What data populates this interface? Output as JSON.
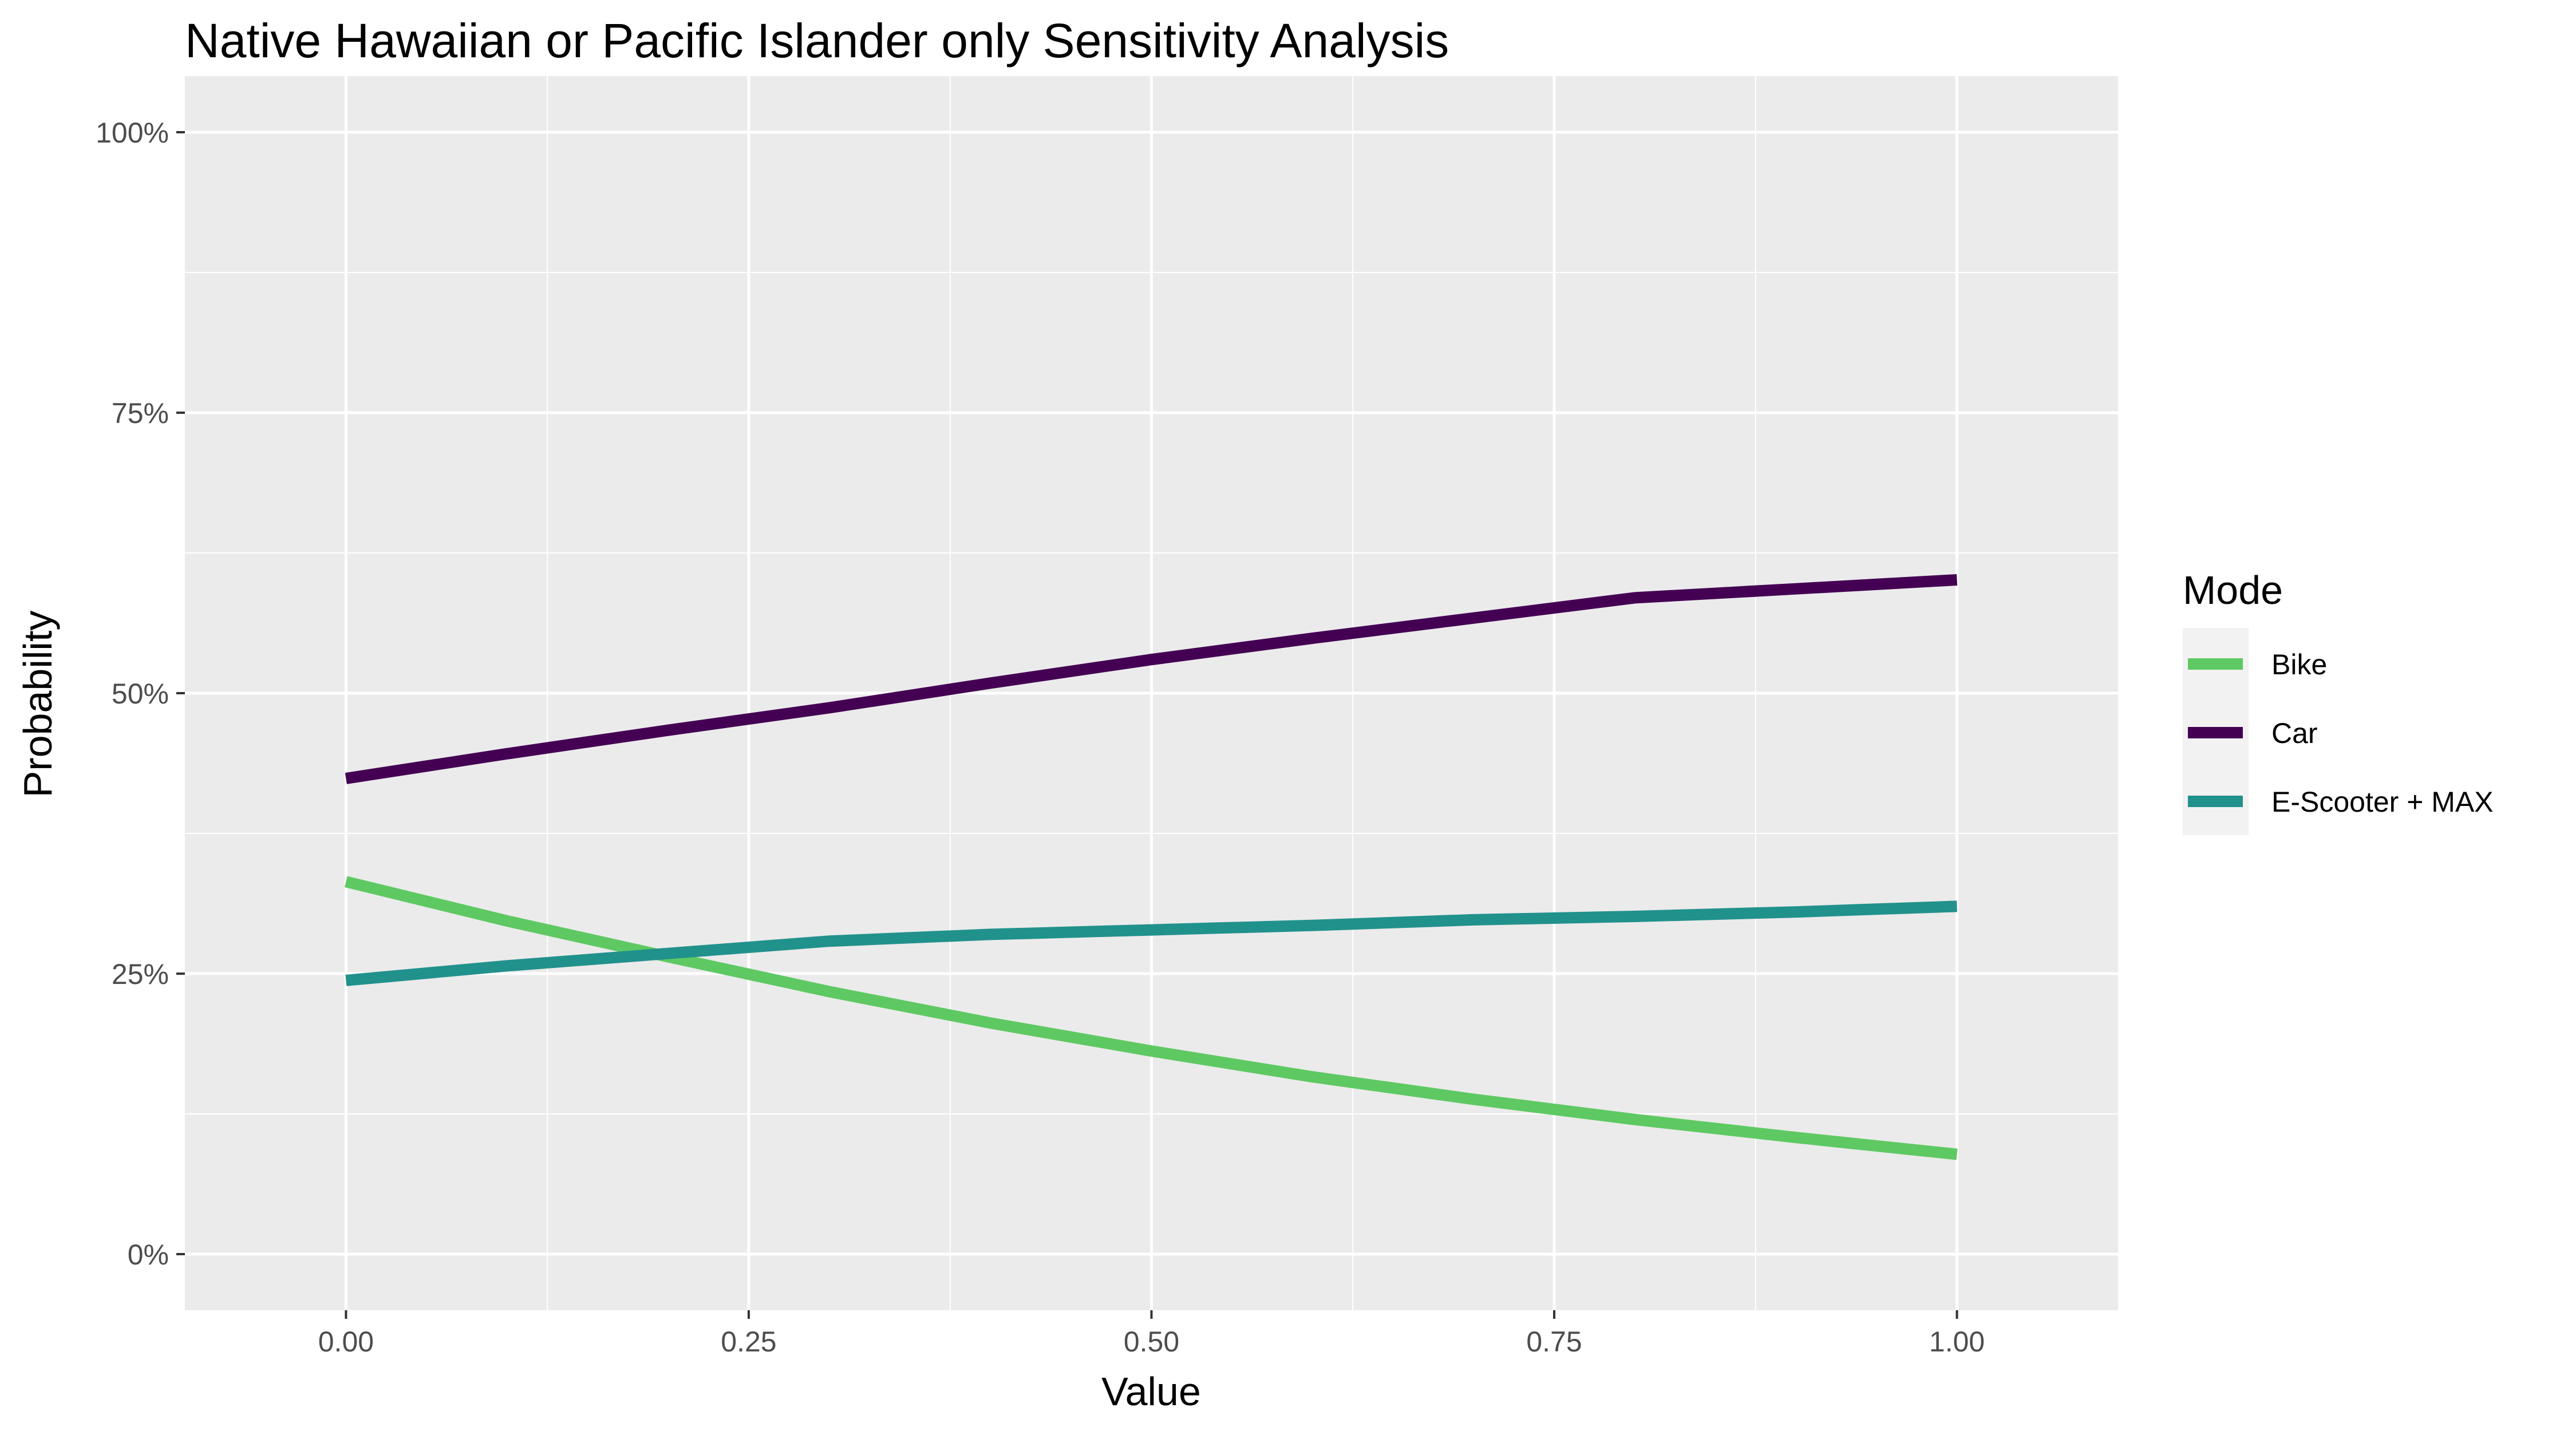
{
  "chart_data": {
    "type": "line",
    "title": "Native Hawaiian or Pacific Islander only Sensitivity Analysis",
    "xlabel": "Value",
    "ylabel": "Probability",
    "xlim": [
      -0.1,
      1.1
    ],
    "ylim": [
      -0.05,
      1.05
    ],
    "x_ticks": [
      0.0,
      0.25,
      0.5,
      0.75,
      1.0
    ],
    "x_tick_labels": [
      "0.00",
      "0.25",
      "0.50",
      "0.75",
      "1.00"
    ],
    "y_ticks": [
      0.0,
      0.25,
      0.5,
      0.75,
      1.0
    ],
    "y_tick_labels": [
      "0%",
      "25%",
      "50%",
      "75%",
      "100%"
    ],
    "grid": true,
    "legend": {
      "title": "Mode",
      "placement": "right"
    },
    "x": [
      0.0,
      0.1,
      0.2,
      0.3,
      0.4,
      0.5,
      0.6,
      0.7,
      0.8,
      0.9,
      1.0
    ],
    "series": [
      {
        "name": "Bike",
        "color": "#5ec962",
        "values": [
          0.332,
          0.297,
          0.265,
          0.234,
          0.206,
          0.181,
          0.158,
          0.138,
          0.12,
          0.104,
          0.089
        ]
      },
      {
        "name": "Car",
        "color": "#440154",
        "values": [
          0.424,
          0.446,
          0.467,
          0.487,
          0.509,
          0.53,
          0.549,
          0.567,
          0.585,
          0.593,
          0.601
        ]
      },
      {
        "name": "E-Scooter + MAX",
        "color": "#21918c",
        "values": [
          0.244,
          0.257,
          0.268,
          0.279,
          0.285,
          0.289,
          0.293,
          0.298,
          0.301,
          0.305,
          0.31
        ]
      }
    ]
  }
}
